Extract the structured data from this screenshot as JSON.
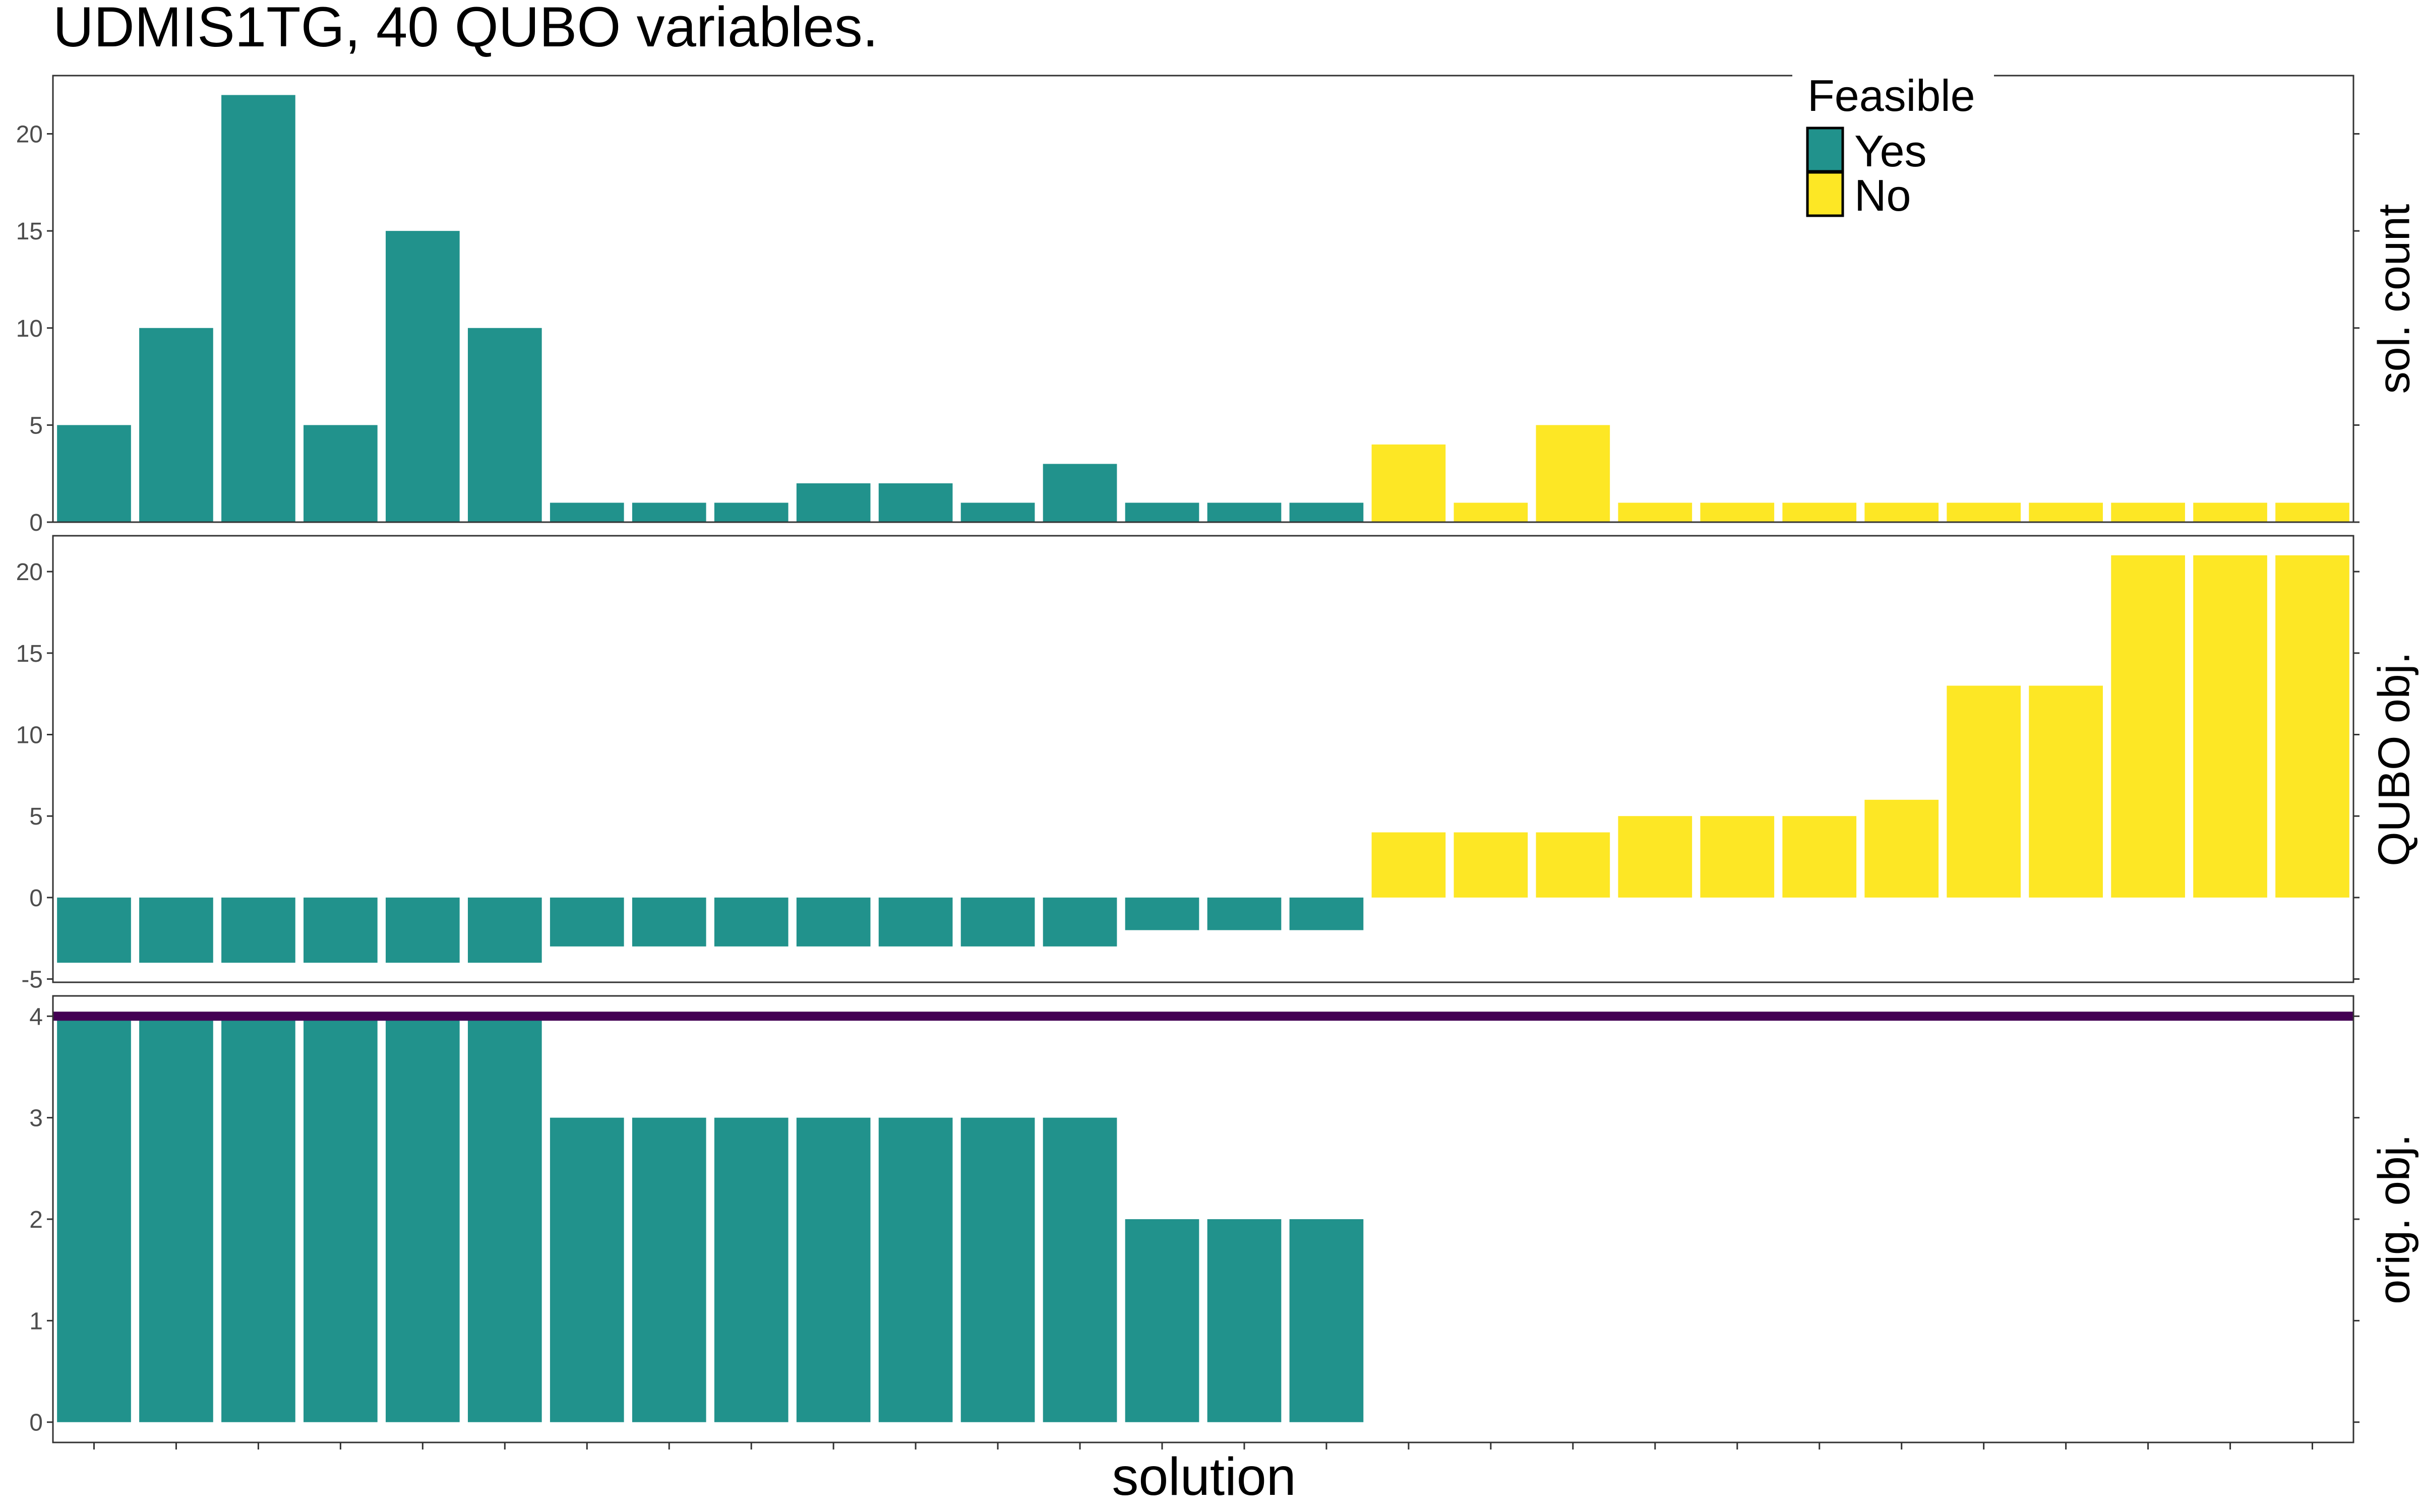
{
  "title": "UDMIS1TG, 40 QUBO variables.",
  "colors": {
    "feasible_yes": "#21928C",
    "feasible_no": "#FDE725",
    "optimum_line": "#440154"
  },
  "legend": {
    "title": "Feasible",
    "items": [
      {
        "label": "Yes"
      },
      {
        "label": "No"
      }
    ]
  },
  "chart_data": {
    "type": "bar",
    "xlabel": "solution",
    "n_solutions": 28,
    "feasible": [
      "Yes",
      "Yes",
      "Yes",
      "Yes",
      "Yes",
      "Yes",
      "Yes",
      "Yes",
      "Yes",
      "Yes",
      "Yes",
      "Yes",
      "Yes",
      "Yes",
      "Yes",
      "Yes",
      "No",
      "No",
      "No",
      "No",
      "No",
      "No",
      "No",
      "No",
      "No",
      "No",
      "No",
      "No"
    ],
    "legend_position": "top-right",
    "grid": false,
    "panels": [
      {
        "label": "sol. count",
        "ylim": [
          0,
          23
        ],
        "ticks": [
          0,
          5,
          10,
          15,
          20
        ],
        "values": [
          5,
          10,
          22,
          5,
          15,
          10,
          1,
          1,
          1,
          2,
          2,
          1,
          3,
          1,
          1,
          1,
          4,
          1,
          5,
          1,
          1,
          1,
          1,
          1,
          1,
          1,
          1,
          1
        ]
      },
      {
        "label": "QUBO obj.",
        "ylim": [
          -5.2,
          22.2
        ],
        "ticks": [
          -5,
          0,
          5,
          10,
          15,
          20
        ],
        "values": [
          -4,
          -4,
          -4,
          -4,
          -4,
          -4,
          -3,
          -3,
          -3,
          -3,
          -3,
          -3,
          -3,
          -2,
          -2,
          -2,
          4,
          4,
          4,
          5,
          5,
          5,
          6,
          13,
          13,
          21,
          21,
          21
        ]
      },
      {
        "label": "orig. obj.",
        "ylim": [
          -0.2,
          4.2
        ],
        "ticks": [
          0,
          1,
          2,
          3,
          4
        ],
        "values": [
          4,
          4,
          4,
          4,
          4,
          4,
          3,
          3,
          3,
          3,
          3,
          3,
          3,
          2,
          2,
          2,
          null,
          null,
          null,
          null,
          null,
          null,
          null,
          null,
          null,
          null,
          null,
          null
        ],
        "hline": 4
      }
    ]
  }
}
